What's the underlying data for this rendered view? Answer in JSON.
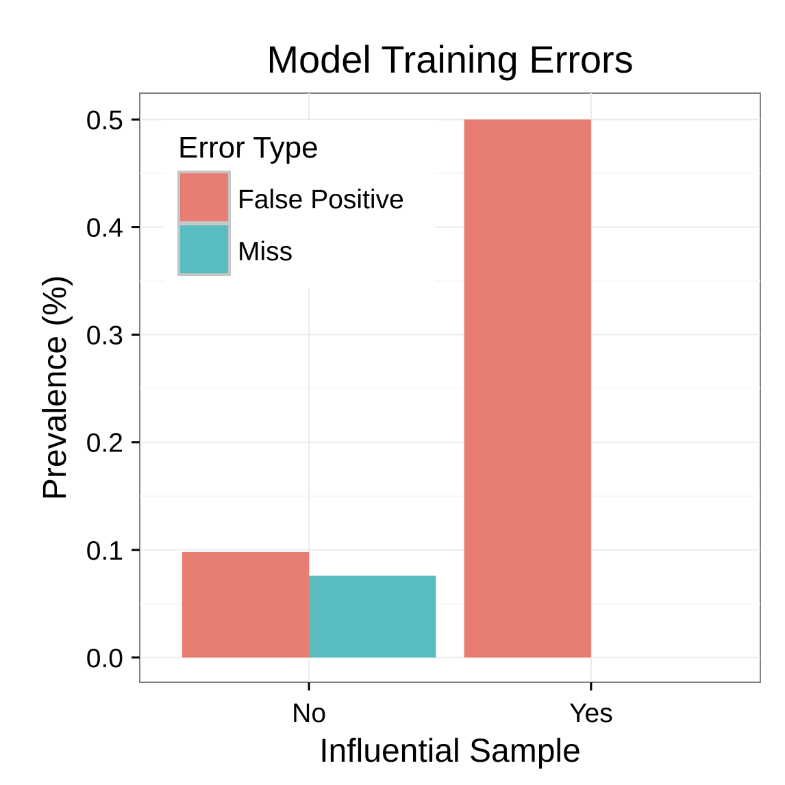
{
  "chart_data": {
    "type": "bar",
    "title": "Model Training Errors",
    "xlabel": "Influential Sample",
    "ylabel": "Prevalence (%)",
    "categories": [
      "No",
      "Yes"
    ],
    "series": [
      {
        "name": "False Positive",
        "values": [
          0.098,
          0.5
        ],
        "color": "#E87E72"
      },
      {
        "name": "Miss",
        "values": [
          0.076,
          null
        ],
        "color": "#58BCC1"
      }
    ],
    "yticks": [
      "0.0",
      "0.1",
      "0.2",
      "0.3",
      "0.4",
      "0.5"
    ],
    "ylim": [
      -0.023,
      0.5245
    ],
    "grid": true,
    "legend": {
      "title": "Error Type",
      "position": "top-left"
    }
  }
}
